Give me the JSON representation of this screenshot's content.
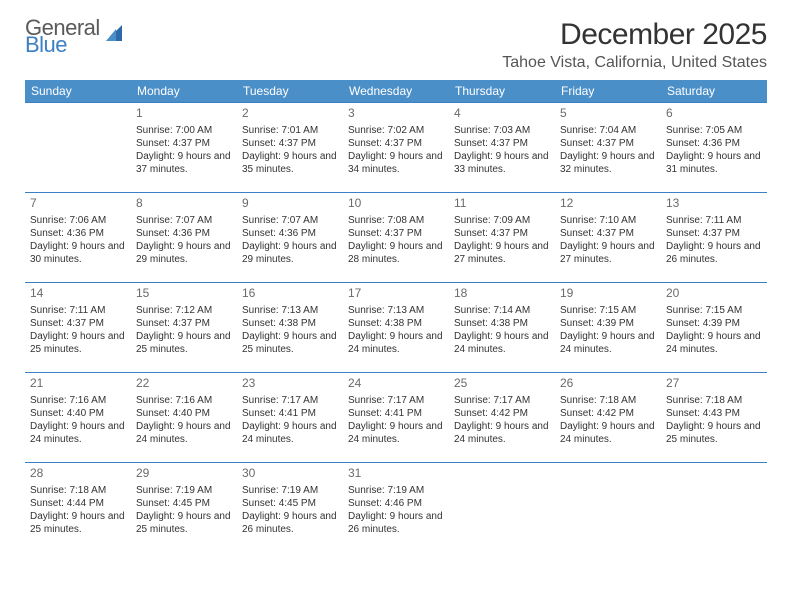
{
  "logo": {
    "general": "General",
    "blue": "Blue"
  },
  "header": {
    "title": "December 2025",
    "location": "Tahoe Vista, California, United States"
  },
  "dayNames": [
    "Sunday",
    "Monday",
    "Tuesday",
    "Wednesday",
    "Thursday",
    "Friday",
    "Saturday"
  ],
  "style": {
    "header_bg": "#4b8fc9",
    "header_fg": "#ffffff",
    "cell_border": "#3b7fc4",
    "title_color": "#333333",
    "location_color": "#555555",
    "logo_gray": "#5a5a5a",
    "logo_blue": "#3b7fc4"
  },
  "grid": [
    [
      null,
      {
        "n": "1",
        "sr": "7:00 AM",
        "ss": "4:37 PM",
        "dl": "9 hours and 37 minutes."
      },
      {
        "n": "2",
        "sr": "7:01 AM",
        "ss": "4:37 PM",
        "dl": "9 hours and 35 minutes."
      },
      {
        "n": "3",
        "sr": "7:02 AM",
        "ss": "4:37 PM",
        "dl": "9 hours and 34 minutes."
      },
      {
        "n": "4",
        "sr": "7:03 AM",
        "ss": "4:37 PM",
        "dl": "9 hours and 33 minutes."
      },
      {
        "n": "5",
        "sr": "7:04 AM",
        "ss": "4:37 PM",
        "dl": "9 hours and 32 minutes."
      },
      {
        "n": "6",
        "sr": "7:05 AM",
        "ss": "4:36 PM",
        "dl": "9 hours and 31 minutes."
      }
    ],
    [
      {
        "n": "7",
        "sr": "7:06 AM",
        "ss": "4:36 PM",
        "dl": "9 hours and 30 minutes."
      },
      {
        "n": "8",
        "sr": "7:07 AM",
        "ss": "4:36 PM",
        "dl": "9 hours and 29 minutes."
      },
      {
        "n": "9",
        "sr": "7:07 AM",
        "ss": "4:36 PM",
        "dl": "9 hours and 29 minutes."
      },
      {
        "n": "10",
        "sr": "7:08 AM",
        "ss": "4:37 PM",
        "dl": "9 hours and 28 minutes."
      },
      {
        "n": "11",
        "sr": "7:09 AM",
        "ss": "4:37 PM",
        "dl": "9 hours and 27 minutes."
      },
      {
        "n": "12",
        "sr": "7:10 AM",
        "ss": "4:37 PM",
        "dl": "9 hours and 27 minutes."
      },
      {
        "n": "13",
        "sr": "7:11 AM",
        "ss": "4:37 PM",
        "dl": "9 hours and 26 minutes."
      }
    ],
    [
      {
        "n": "14",
        "sr": "7:11 AM",
        "ss": "4:37 PM",
        "dl": "9 hours and 25 minutes."
      },
      {
        "n": "15",
        "sr": "7:12 AM",
        "ss": "4:37 PM",
        "dl": "9 hours and 25 minutes."
      },
      {
        "n": "16",
        "sr": "7:13 AM",
        "ss": "4:38 PM",
        "dl": "9 hours and 25 minutes."
      },
      {
        "n": "17",
        "sr": "7:13 AM",
        "ss": "4:38 PM",
        "dl": "9 hours and 24 minutes."
      },
      {
        "n": "18",
        "sr": "7:14 AM",
        "ss": "4:38 PM",
        "dl": "9 hours and 24 minutes."
      },
      {
        "n": "19",
        "sr": "7:15 AM",
        "ss": "4:39 PM",
        "dl": "9 hours and 24 minutes."
      },
      {
        "n": "20",
        "sr": "7:15 AM",
        "ss": "4:39 PM",
        "dl": "9 hours and 24 minutes."
      }
    ],
    [
      {
        "n": "21",
        "sr": "7:16 AM",
        "ss": "4:40 PM",
        "dl": "9 hours and 24 minutes."
      },
      {
        "n": "22",
        "sr": "7:16 AM",
        "ss": "4:40 PM",
        "dl": "9 hours and 24 minutes."
      },
      {
        "n": "23",
        "sr": "7:17 AM",
        "ss": "4:41 PM",
        "dl": "9 hours and 24 minutes."
      },
      {
        "n": "24",
        "sr": "7:17 AM",
        "ss": "4:41 PM",
        "dl": "9 hours and 24 minutes."
      },
      {
        "n": "25",
        "sr": "7:17 AM",
        "ss": "4:42 PM",
        "dl": "9 hours and 24 minutes."
      },
      {
        "n": "26",
        "sr": "7:18 AM",
        "ss": "4:42 PM",
        "dl": "9 hours and 24 minutes."
      },
      {
        "n": "27",
        "sr": "7:18 AM",
        "ss": "4:43 PM",
        "dl": "9 hours and 25 minutes."
      }
    ],
    [
      {
        "n": "28",
        "sr": "7:18 AM",
        "ss": "4:44 PM",
        "dl": "9 hours and 25 minutes."
      },
      {
        "n": "29",
        "sr": "7:19 AM",
        "ss": "4:45 PM",
        "dl": "9 hours and 25 minutes."
      },
      {
        "n": "30",
        "sr": "7:19 AM",
        "ss": "4:45 PM",
        "dl": "9 hours and 26 minutes."
      },
      {
        "n": "31",
        "sr": "7:19 AM",
        "ss": "4:46 PM",
        "dl": "9 hours and 26 minutes."
      },
      null,
      null,
      null
    ]
  ],
  "labels": {
    "sunrise": "Sunrise: ",
    "sunset": "Sunset: ",
    "daylight": "Daylight: "
  }
}
